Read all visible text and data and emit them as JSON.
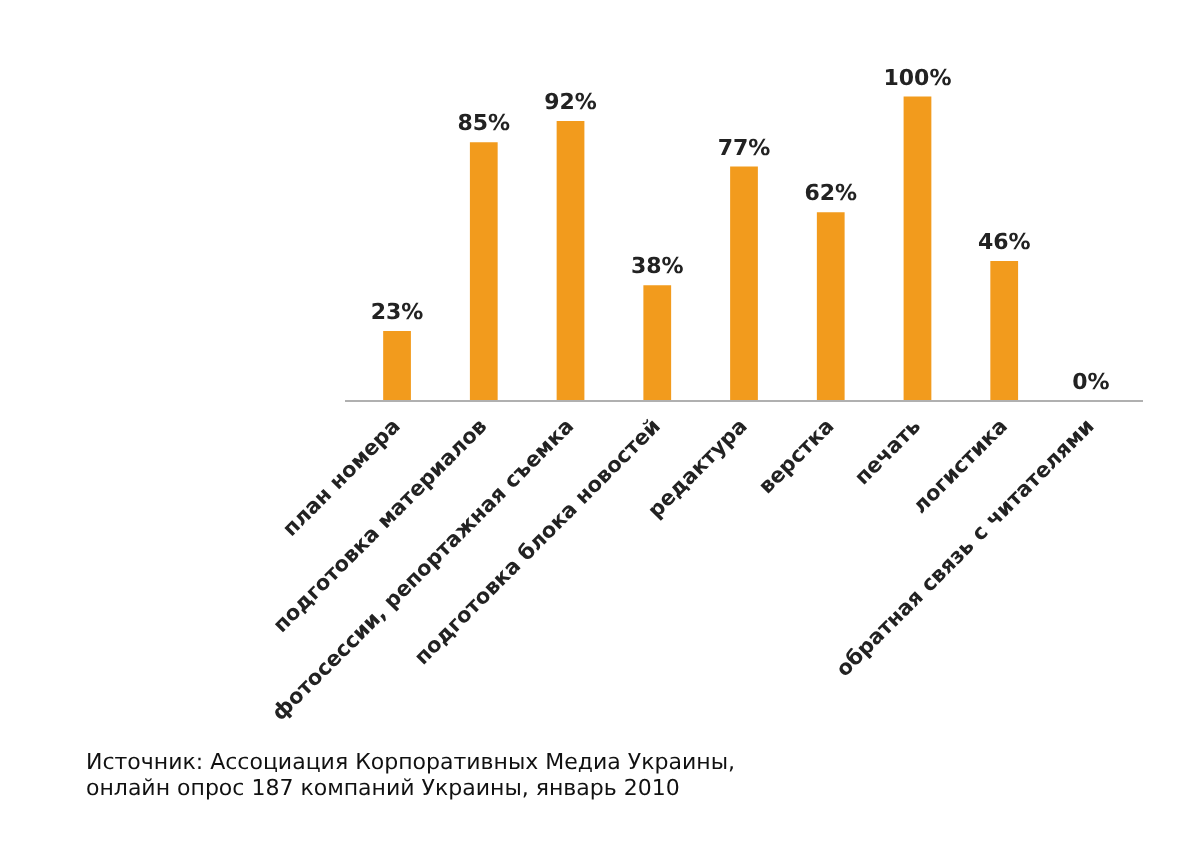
{
  "chart_data": {
    "type": "bar",
    "categories": [
      "план номера",
      "подготовка материалов",
      "фотосессии, репортажная съемка",
      "подготовка блока новостей",
      "редактура",
      "верстка",
      "печать",
      "логистика",
      "обратная связь с читателями"
    ],
    "values": [
      23,
      85,
      92,
      38,
      77,
      62,
      100,
      46,
      0
    ],
    "value_labels": [
      "23%",
      "85%",
      "92%",
      "38%",
      "77%",
      "62%",
      "100%",
      "46%",
      "0%"
    ],
    "color": "#f29b1d",
    "tick_labels": "x",
    "grid": false,
    "annotations": [
      "Источник: Ассоциация Корпоративных Медиа Украины,\nонлайн опрос 187 компаний Украины, январь 2010"
    ]
  }
}
